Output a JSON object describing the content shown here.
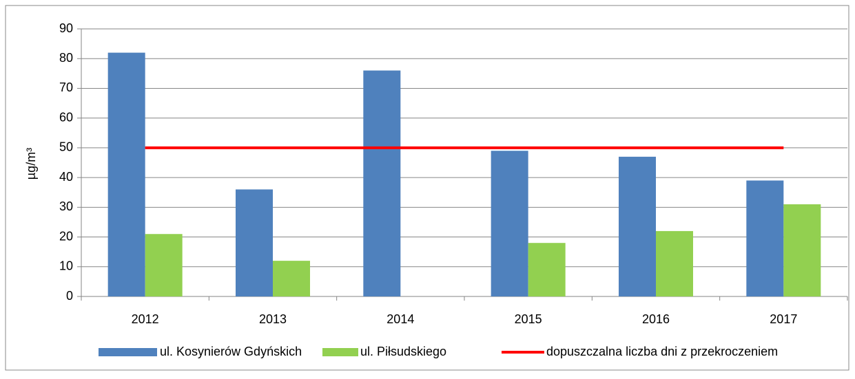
{
  "chart_data": {
    "type": "bar",
    "categories": [
      "2012",
      "2013",
      "2014",
      "2015",
      "2016",
      "2017"
    ],
    "series": [
      {
        "name": "ul. Kosynierów Gdyńskich",
        "color": "#4f81bd",
        "values": [
          82,
          36,
          76,
          49,
          47,
          39
        ]
      },
      {
        "name": "ul. Piłsudskiego",
        "color": "#92d050",
        "values": [
          21,
          12,
          null,
          18,
          22,
          31
        ]
      },
      {
        "name": "dopuszczalna liczba dni z przekroczeniem",
        "color": "#ff0000",
        "type": "line",
        "values": [
          50,
          50,
          50,
          50,
          50,
          50
        ]
      }
    ],
    "ylabel": "µg/m³",
    "ylim": [
      0,
      90
    ],
    "yticks": [
      0,
      10,
      20,
      30,
      40,
      50,
      60,
      70,
      80,
      90
    ],
    "grid": true,
    "legend": "bottom"
  }
}
